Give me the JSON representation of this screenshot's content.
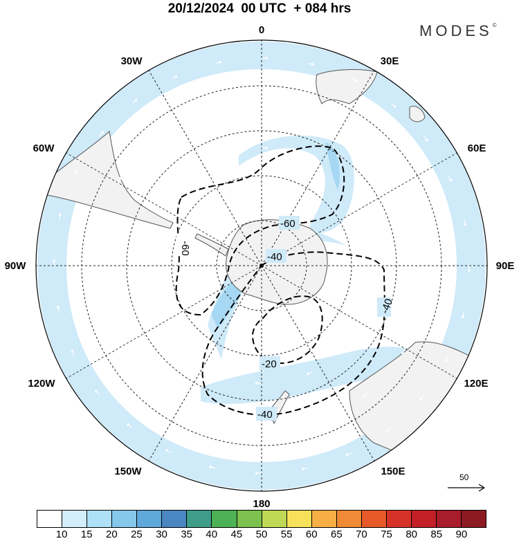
{
  "header": {
    "title": "20/12/2024  00 UTC  + 084 hrs",
    "brand": "MODES",
    "brand_mark": "©"
  },
  "map": {
    "projection": "polar stereographic, south pole",
    "longitude_labels": [
      "0",
      "30E",
      "60E",
      "90E",
      "120E",
      "150E",
      "180",
      "150W",
      "120W",
      "90W",
      "60W",
      "30W"
    ],
    "contour_labels": [
      "-60",
      "-60",
      "-40",
      "-40",
      "-40",
      "-20"
    ],
    "contour_style": "dashed",
    "field_colors": {
      "light": "#cfeaf9",
      "medium": "#a6d8f3",
      "land": "#f2f2f2",
      "coast": "#555555"
    },
    "wind_vectors": "white"
  },
  "scale_arrow": {
    "label": "50"
  },
  "colorbar": {
    "labels": [
      "10",
      "15",
      "20",
      "25",
      "30",
      "35",
      "40",
      "45",
      "50",
      "55",
      "60",
      "65",
      "70",
      "75",
      "80",
      "85",
      "90"
    ],
    "colors": [
      "#ffffff",
      "#d4eefb",
      "#aee0f6",
      "#86c8ec",
      "#5fa8dc",
      "#4a86c2",
      "#3f9e8a",
      "#4db155",
      "#7dc24f",
      "#bfd957",
      "#f7e15a",
      "#f6ae45",
      "#ef8a36",
      "#e65a2a",
      "#d73227",
      "#c21f26",
      "#a91c2a",
      "#8c1a20"
    ]
  }
}
